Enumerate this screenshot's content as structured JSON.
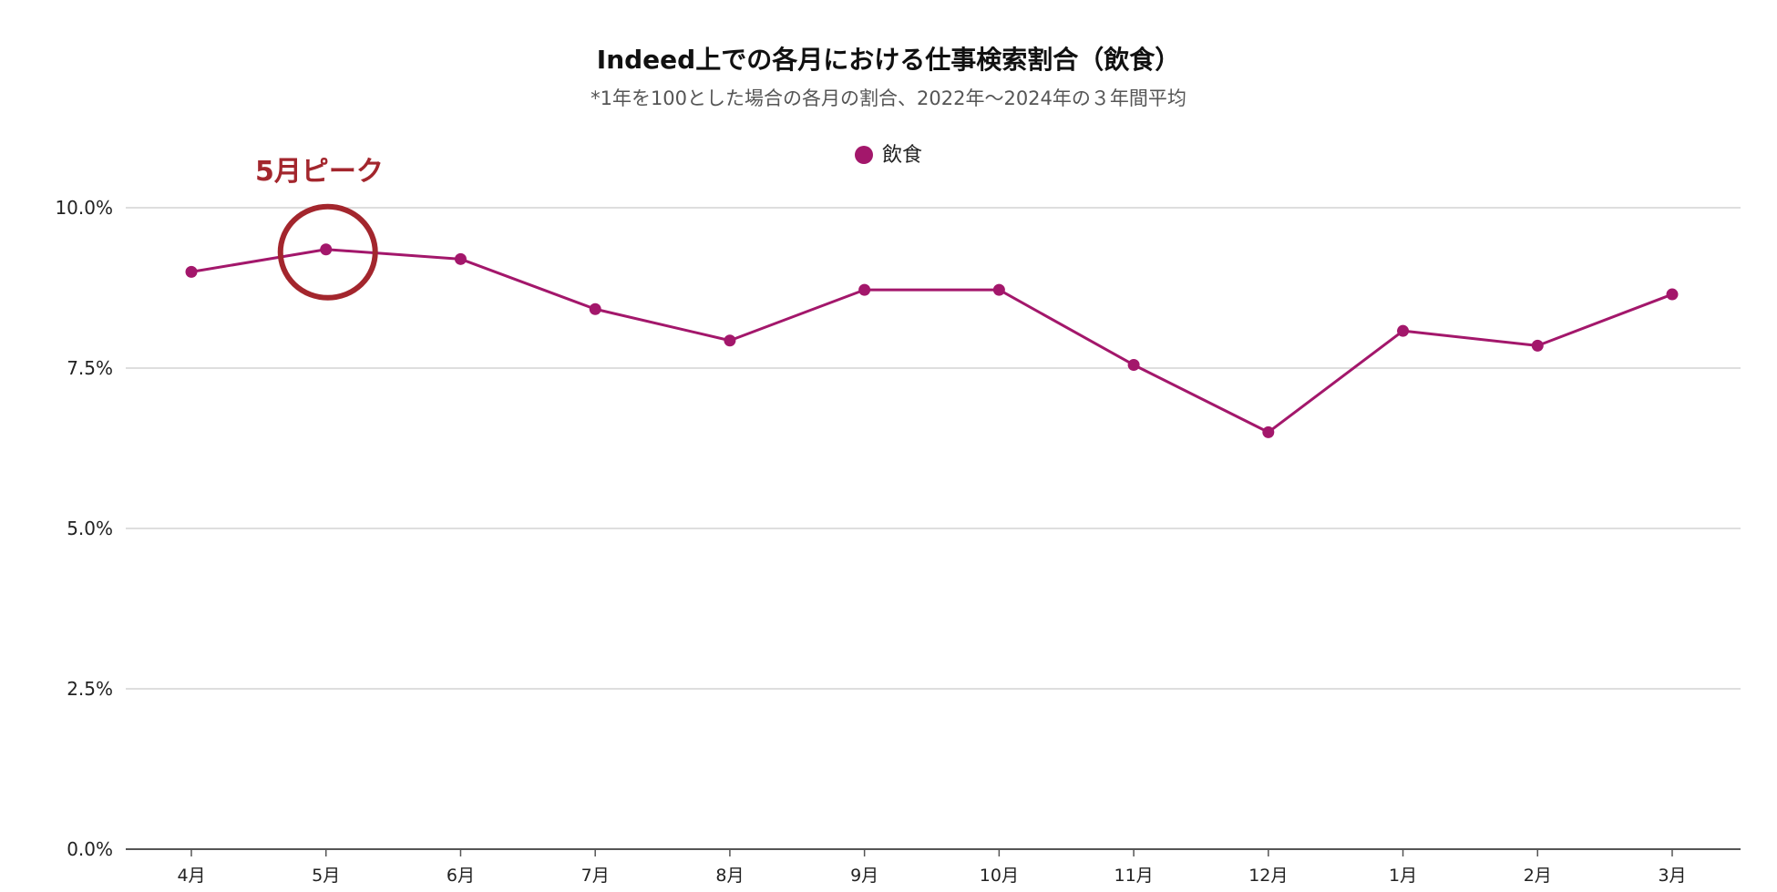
{
  "chart_data": {
    "type": "line",
    "title": "Indeed上での各月における仕事検索割合（飲食）",
    "subtitle": "*1年を100とした場合の各月の割合、2022年〜2024年の３年間平均",
    "categories": [
      "4月",
      "5月",
      "6月",
      "7月",
      "8月",
      "9月",
      "10月",
      "11月",
      "12月",
      "1月",
      "2月",
      "3月"
    ],
    "series": [
      {
        "name": "飲食",
        "values": [
          9.0,
          9.35,
          9.2,
          8.42,
          7.93,
          8.72,
          8.72,
          7.55,
          6.5,
          8.08,
          7.85,
          8.65
        ]
      }
    ],
    "y_ticks": [
      "0.0%",
      "2.5%",
      "5.0%",
      "7.5%",
      "10.0%"
    ],
    "ylim": [
      0,
      10
    ],
    "grid": true,
    "legend_position": "top-center",
    "series_color": "#a3176b",
    "annotation": {
      "text": "5月ピーク",
      "category": "5月",
      "color": "#a3262d"
    }
  }
}
